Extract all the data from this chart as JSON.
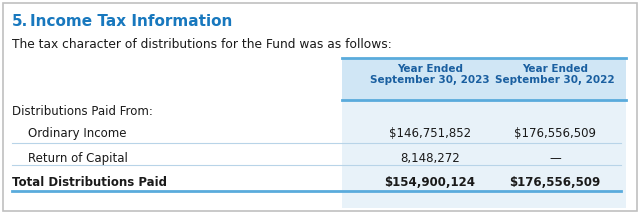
{
  "title_number": "5.",
  "title_main": "Income Tax Information",
  "subtitle": "The tax character of distributions for the Fund was as follows:",
  "col1_header_line1": "Year Ended",
  "col1_header_line2": "September 30, 2023",
  "col2_header_line1": "Year Ended",
  "col2_header_line2": "September 30, 2022",
  "rows": [
    {
      "label": "Distributions Paid From:",
      "indent": false,
      "val1": "",
      "val2": "",
      "bold": false
    },
    {
      "label": "Ordinary Income",
      "indent": true,
      "val1": "$146,751,852",
      "val2": "$176,556,509",
      "bold": false
    },
    {
      "label": "Return of Capital",
      "indent": true,
      "val1": "8,148,272",
      "val2": "—",
      "bold": false
    },
    {
      "label": "Total Distributions Paid",
      "indent": false,
      "val1": "$154,900,124",
      "val2": "$176,556,509",
      "bold": true
    }
  ],
  "title_color": "#1878be",
  "dark_blue": "#1a5fa0",
  "text_color": "#1a1a1a",
  "blue_line": "#5aabdc",
  "col_bg": "#e8f2f9",
  "header_bg": "#d0e6f5",
  "outer_border": "#c0c0c0",
  "sep_color": "#b8d4e8",
  "fig_w": 6.4,
  "fig_h": 2.14,
  "dpi": 100
}
